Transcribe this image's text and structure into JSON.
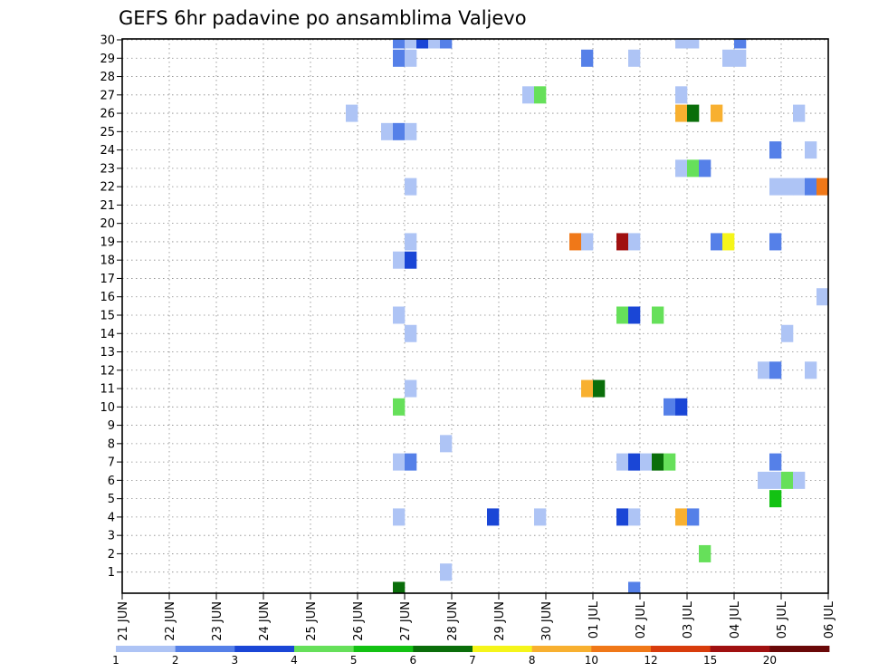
{
  "chart_data": {
    "type": "heatmap",
    "title": "GEFS 6hr padavine po ansamblima Valjevo",
    "xlabel": "",
    "ylabel": "",
    "x_ticks": [
      "21 JUN",
      "22 JUN",
      "23 JUN",
      "24 JUN",
      "25 JUN",
      "26 JUN",
      "27 JUN",
      "28 JUN",
      "29 JUN",
      "30 JUN",
      "01 JUL",
      "02 JUL",
      "03 JUL",
      "04 JUL",
      "05 JUL",
      "06 JUL"
    ],
    "y_ticks": [
      "1",
      "2",
      "3",
      "4",
      "5",
      "6",
      "7",
      "8",
      "9",
      "10",
      "11",
      "12",
      "13",
      "14",
      "15",
      "16",
      "17",
      "18",
      "19",
      "20",
      "21",
      "22",
      "23",
      "24",
      "25",
      "26",
      "27",
      "28",
      "29",
      "30"
    ],
    "x_unit": "6-hour steps from 21 JUN 00 UTC",
    "xlim": [
      0,
      60
    ],
    "ylim": [
      0,
      30
    ],
    "grid": true,
    "colorbar": {
      "levels": [
        "1",
        "2",
        "3",
        "4",
        "5",
        "6",
        "7",
        "8",
        "10",
        "12",
        "15",
        "20"
      ],
      "colors": [
        "#aec4f5",
        "#5580e8",
        "#1a46d6",
        "#66e05a",
        "#13c213",
        "#0a6e0a",
        "#f5f51a",
        "#f8b030",
        "#f07818",
        "#d83c0c",
        "#a01010",
        "#6a0808"
      ]
    },
    "cells": [
      {
        "x": 23,
        "y": 30,
        "c": 2
      },
      {
        "x": 24,
        "y": 30,
        "c": 1
      },
      {
        "x": 25,
        "y": 30,
        "c": 3
      },
      {
        "x": 26,
        "y": 30,
        "c": 1
      },
      {
        "x": 27,
        "y": 30,
        "c": 2
      },
      {
        "x": 47,
        "y": 30,
        "c": 1
      },
      {
        "x": 48,
        "y": 30,
        "c": 1
      },
      {
        "x": 52,
        "y": 30,
        "c": 2
      },
      {
        "x": 23,
        "y": 29,
        "c": 2
      },
      {
        "x": 24,
        "y": 29,
        "c": 1
      },
      {
        "x": 39,
        "y": 29,
        "c": 2
      },
      {
        "x": 43,
        "y": 29,
        "c": 1
      },
      {
        "x": 51,
        "y": 29,
        "c": 1
      },
      {
        "x": 52,
        "y": 29,
        "c": 1
      },
      {
        "x": 34,
        "y": 27,
        "c": 1
      },
      {
        "x": 35,
        "y": 27,
        "c": 4
      },
      {
        "x": 47,
        "y": 27,
        "c": 1
      },
      {
        "x": 19,
        "y": 26,
        "c": 1
      },
      {
        "x": 47,
        "y": 26,
        "c": 8
      },
      {
        "x": 48,
        "y": 26,
        "c": 6
      },
      {
        "x": 50,
        "y": 26,
        "c": 8
      },
      {
        "x": 57,
        "y": 26,
        "c": 1
      },
      {
        "x": 22,
        "y": 25,
        "c": 1
      },
      {
        "x": 23,
        "y": 25,
        "c": 2
      },
      {
        "x": 24,
        "y": 25,
        "c": 1
      },
      {
        "x": 55,
        "y": 24,
        "c": 2
      },
      {
        "x": 58,
        "y": 24,
        "c": 1
      },
      {
        "x": 47,
        "y": 23,
        "c": 1
      },
      {
        "x": 48,
        "y": 23,
        "c": 4
      },
      {
        "x": 49,
        "y": 23,
        "c": 2
      },
      {
        "x": 24,
        "y": 22,
        "c": 1
      },
      {
        "x": 55,
        "y": 22,
        "c": 1
      },
      {
        "x": 56,
        "y": 22,
        "c": 1
      },
      {
        "x": 57,
        "y": 22,
        "c": 1
      },
      {
        "x": 58,
        "y": 22,
        "c": 2
      },
      {
        "x": 59,
        "y": 22,
        "c": 9
      },
      {
        "x": 24,
        "y": 19,
        "c": 1
      },
      {
        "x": 38,
        "y": 19,
        "c": 9
      },
      {
        "x": 39,
        "y": 19,
        "c": 1
      },
      {
        "x": 42,
        "y": 19,
        "c": 11
      },
      {
        "x": 43,
        "y": 19,
        "c": 1
      },
      {
        "x": 50,
        "y": 19,
        "c": 2
      },
      {
        "x": 51,
        "y": 19,
        "c": 7
      },
      {
        "x": 55,
        "y": 19,
        "c": 2
      },
      {
        "x": 23,
        "y": 18,
        "c": 1
      },
      {
        "x": 24,
        "y": 18,
        "c": 3
      },
      {
        "x": 59,
        "y": 16,
        "c": 1
      },
      {
        "x": 23,
        "y": 15,
        "c": 1
      },
      {
        "x": 42,
        "y": 15,
        "c": 4
      },
      {
        "x": 43,
        "y": 15,
        "c": 3
      },
      {
        "x": 45,
        "y": 15,
        "c": 4
      },
      {
        "x": 24,
        "y": 14,
        "c": 1
      },
      {
        "x": 56,
        "y": 14,
        "c": 1
      },
      {
        "x": 54,
        "y": 12,
        "c": 1
      },
      {
        "x": 55,
        "y": 12,
        "c": 2
      },
      {
        "x": 58,
        "y": 12,
        "c": 1
      },
      {
        "x": 24,
        "y": 11,
        "c": 1
      },
      {
        "x": 39,
        "y": 11,
        "c": 8
      },
      {
        "x": 40,
        "y": 11,
        "c": 6
      },
      {
        "x": 23,
        "y": 10,
        "c": 4
      },
      {
        "x": 46,
        "y": 10,
        "c": 2
      },
      {
        "x": 47,
        "y": 10,
        "c": 3
      },
      {
        "x": 27,
        "y": 8,
        "c": 1
      },
      {
        "x": 23,
        "y": 7,
        "c": 1
      },
      {
        "x": 24,
        "y": 7,
        "c": 2
      },
      {
        "x": 42,
        "y": 7,
        "c": 1
      },
      {
        "x": 43,
        "y": 7,
        "c": 3
      },
      {
        "x": 44,
        "y": 7,
        "c": 1
      },
      {
        "x": 45,
        "y": 7,
        "c": 6
      },
      {
        "x": 46,
        "y": 7,
        "c": 4
      },
      {
        "x": 55,
        "y": 7,
        "c": 2
      },
      {
        "x": 54,
        "y": 6,
        "c": 1
      },
      {
        "x": 55,
        "y": 6,
        "c": 1
      },
      {
        "x": 56,
        "y": 6,
        "c": 4
      },
      {
        "x": 57,
        "y": 6,
        "c": 1
      },
      {
        "x": 55,
        "y": 5,
        "c": 5
      },
      {
        "x": 23,
        "y": 4,
        "c": 1
      },
      {
        "x": 31,
        "y": 4,
        "c": 3
      },
      {
        "x": 35,
        "y": 4,
        "c": 1
      },
      {
        "x": 42,
        "y": 4,
        "c": 3
      },
      {
        "x": 43,
        "y": 4,
        "c": 1
      },
      {
        "x": 47,
        "y": 4,
        "c": 8
      },
      {
        "x": 48,
        "y": 4,
        "c": 2
      },
      {
        "x": 49,
        "y": 2,
        "c": 4
      },
      {
        "x": 27,
        "y": 1,
        "c": 1
      },
      {
        "x": 23,
        "y": 0,
        "c": 6
      },
      {
        "x": 43,
        "y": 0,
        "c": 2
      }
    ]
  }
}
